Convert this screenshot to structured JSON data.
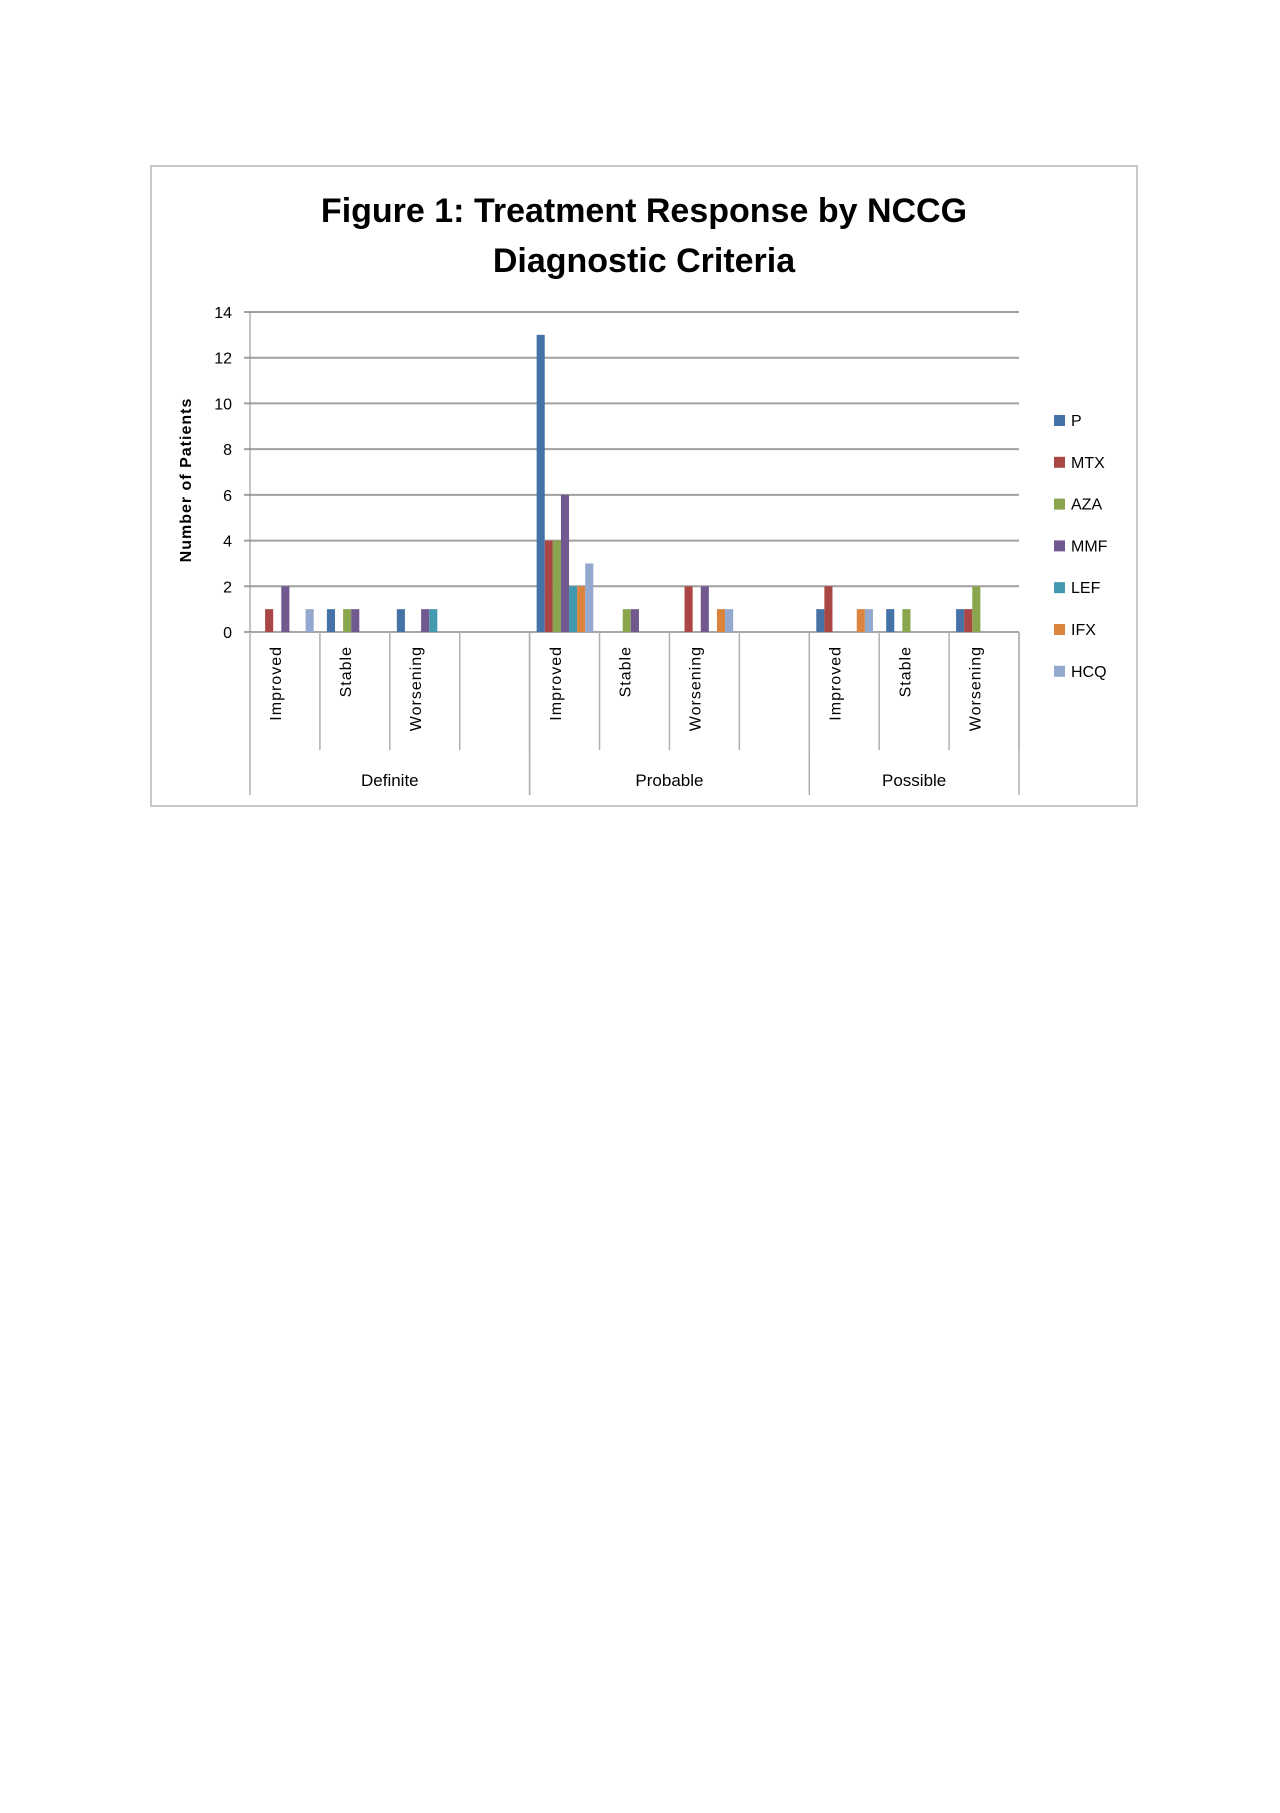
{
  "chart_data": {
    "type": "bar",
    "title": "Figure 1: Treatment Response by NCCG Diagnostic Criteria",
    "title_lines": [
      "Figure 1: Treatment Response by NCCG",
      "Diagnostic Criteria"
    ],
    "xlabel": "",
    "ylabel": "Number of Patients",
    "ylim": [
      0,
      14
    ],
    "yticks": [
      0,
      2,
      4,
      6,
      8,
      10,
      12,
      14
    ],
    "grid": true,
    "legend_position": "right",
    "groups": [
      {
        "label": "Definite",
        "categories": [
          "Improved",
          "Stable",
          "Worsening",
          ""
        ]
      },
      {
        "label": "Probable",
        "categories": [
          "Improved",
          "Stable",
          "Worsening",
          ""
        ]
      },
      {
        "label": "Possible",
        "categories": [
          "Improved",
          "Stable",
          "Worsening"
        ]
      }
    ],
    "series": [
      {
        "name": "P",
        "color": "#4572A7",
        "values": [
          0,
          1,
          1,
          0,
          13,
          0,
          0,
          0,
          1,
          1,
          1
        ]
      },
      {
        "name": "MTX",
        "color": "#AA4643",
        "values": [
          1,
          0,
          0,
          0,
          4,
          0,
          2,
          0,
          2,
          0,
          1
        ]
      },
      {
        "name": "AZA",
        "color": "#89A54E",
        "values": [
          0,
          1,
          0,
          0,
          4,
          1,
          0,
          0,
          0,
          1,
          2
        ]
      },
      {
        "name": "MMF",
        "color": "#71588F",
        "values": [
          2,
          1,
          1,
          0,
          6,
          1,
          2,
          0,
          0,
          0,
          0
        ]
      },
      {
        "name": "LEF",
        "color": "#4198AF",
        "values": [
          0,
          0,
          1,
          0,
          2,
          0,
          0,
          0,
          0,
          0,
          0
        ]
      },
      {
        "name": "IFX",
        "color": "#DB843D",
        "values": [
          0,
          0,
          0,
          0,
          2,
          0,
          1,
          0,
          1,
          0,
          0
        ]
      },
      {
        "name": "HCQ",
        "color": "#93A9CF",
        "values": [
          1,
          0,
          0,
          0,
          3,
          0,
          1,
          0,
          1,
          0,
          0
        ]
      }
    ]
  }
}
